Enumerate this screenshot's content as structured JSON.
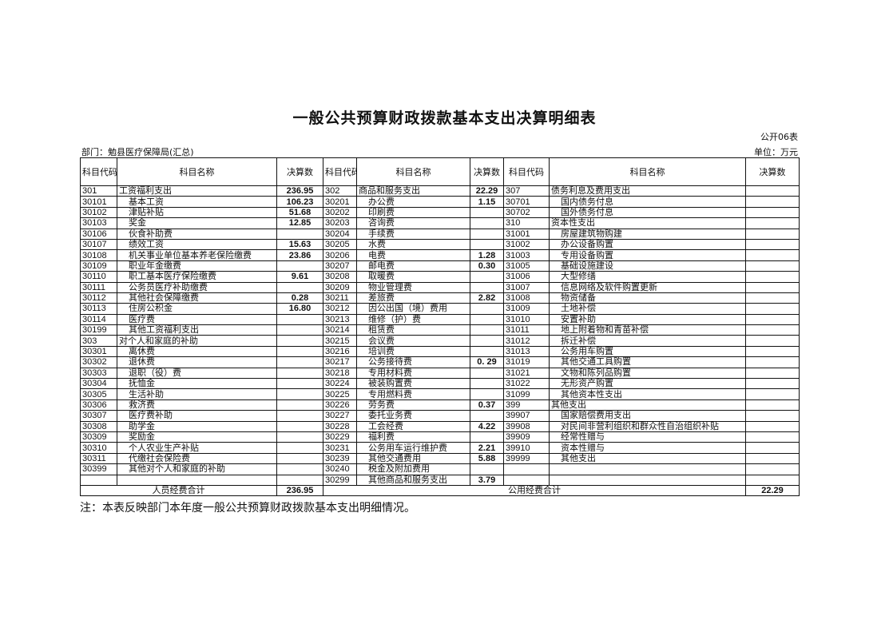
{
  "title": "一般公共预算财政拨款基本支出决算明细表",
  "form_no": "公开06表",
  "department": "部门：勉县医疗保障局(汇总)",
  "unit": "单位：万元",
  "headers": [
    "科目代码",
    "科目名称",
    "决算数",
    "科目代码",
    "科目名称",
    "决算数",
    "科目代码",
    "科目名称",
    "决算数"
  ],
  "rows": [
    [
      "301",
      "工资福利支出",
      "236.95",
      "302",
      "商品和服务支出",
      "22.29",
      "307",
      "债务利息及费用支出",
      ""
    ],
    [
      "30101",
      "基本工资",
      "106.23",
      "30201",
      "办公费",
      "1.15",
      "30701",
      "国内债务付息",
      ""
    ],
    [
      "30102",
      "津贴补贴",
      "51.68",
      "30202",
      "印刷费",
      "",
      "30702",
      "国外债务付息",
      ""
    ],
    [
      "30103",
      "奖金",
      "12.85",
      "30203",
      "咨询费",
      "",
      "310",
      "资本性支出",
      ""
    ],
    [
      "30106",
      "伙食补助费",
      "",
      "30204",
      "手续费",
      "",
      "31001",
      "房屋建筑物购建",
      ""
    ],
    [
      "30107",
      "绩效工资",
      "15.63",
      "30205",
      "水费",
      "",
      "31002",
      "办公设备购置",
      ""
    ],
    [
      "30108",
      "机关事业单位基本养老保险缴费",
      "23.86",
      "30206",
      "电费",
      "1.28",
      "31003",
      "专用设备购置",
      ""
    ],
    [
      "30109",
      "职业年金缴费",
      "",
      "30207",
      "邮电费",
      "0.30",
      "31005",
      "基础设施建设",
      ""
    ],
    [
      "30110",
      "职工基本医疗保险缴费",
      "9.61",
      "30208",
      "取暖费",
      "",
      "31006",
      "大型修缮",
      ""
    ],
    [
      "30111",
      "公务员医疗补助缴费",
      "",
      "30209",
      "物业管理费",
      "",
      "31007",
      "信息网络及软件购置更新",
      ""
    ],
    [
      "30112",
      "其他社会保障缴费",
      "0.28",
      "30211",
      "差旅费",
      "2.82",
      "31008",
      "物资储备",
      ""
    ],
    [
      "30113",
      "住房公积金",
      "16.80",
      "30212",
      "因公出国（境）费用",
      "",
      "31009",
      "土地补偿",
      ""
    ],
    [
      "30114",
      "医疗费",
      "",
      "30213",
      "维修（护）费",
      "",
      "31010",
      "安置补助",
      ""
    ],
    [
      "30199",
      "其他工资福利支出",
      "",
      "30214",
      "租赁费",
      "",
      "31011",
      "地上附着物和青苗补偿",
      ""
    ],
    [
      "303",
      "对个人和家庭的补助",
      "",
      "30215",
      "会议费",
      "",
      "31012",
      "拆迁补偿",
      ""
    ],
    [
      "30301",
      "离休费",
      "",
      "30216",
      "培训费",
      "",
      "31013",
      "公务用车购置",
      ""
    ],
    [
      "30302",
      "退休费",
      "",
      "30217",
      "公务接待费",
      "0. 29",
      "31019",
      "其他交通工具购置",
      ""
    ],
    [
      "30303",
      "退职（役）费",
      "",
      "30218",
      "专用材料费",
      "",
      "31021",
      "文物和陈列品购置",
      ""
    ],
    [
      "30304",
      "抚恤金",
      "",
      "30224",
      "被装购置费",
      "",
      "31022",
      "无形资产购置",
      ""
    ],
    [
      "30305",
      "生活补助",
      "",
      "30225",
      "专用燃料费",
      "",
      "31099",
      "其他资本性支出",
      ""
    ],
    [
      "30306",
      "救济费",
      "",
      "30226",
      "劳务费",
      "0.37",
      "399",
      "其他支出",
      ""
    ],
    [
      "30307",
      "医疗费补助",
      "",
      "30227",
      "委托业务费",
      "",
      "39907",
      "国家赔偿费用支出",
      ""
    ],
    [
      "30308",
      "助学金",
      "",
      "30228",
      "工会经费",
      "4.22",
      "39908",
      "对民间非营利组织和群众性自治组织补贴",
      ""
    ],
    [
      "30309",
      "奖励金",
      "",
      "30229",
      "福利费",
      "",
      "39909",
      "经常性赠与",
      ""
    ],
    [
      "30310",
      "个人农业生产补贴",
      "",
      "30231",
      "公务用车运行维护费",
      "2.21",
      "39910",
      "资本性赠与",
      ""
    ],
    [
      "30311",
      "代缴社会保险费",
      "",
      "30239",
      "其他交通费用",
      "5.88",
      "39999",
      "其他支出",
      ""
    ],
    [
      "30399",
      "其他对个人和家庭的补助",
      "",
      "30240",
      "税金及附加费用",
      "",
      "",
      "",
      ""
    ],
    [
      "",
      "",
      "",
      "30299",
      "其他商品和服务支出",
      "3.79",
      "",
      "",
      ""
    ]
  ],
  "totals": {
    "personnel_label": "人员经费合计",
    "personnel_value": "236.95",
    "public_label": "公用经费合计",
    "public_value": "22.29"
  },
  "note": "注：本表反映部门本年度一般公共预算财政拨款基本支出明细情况。"
}
